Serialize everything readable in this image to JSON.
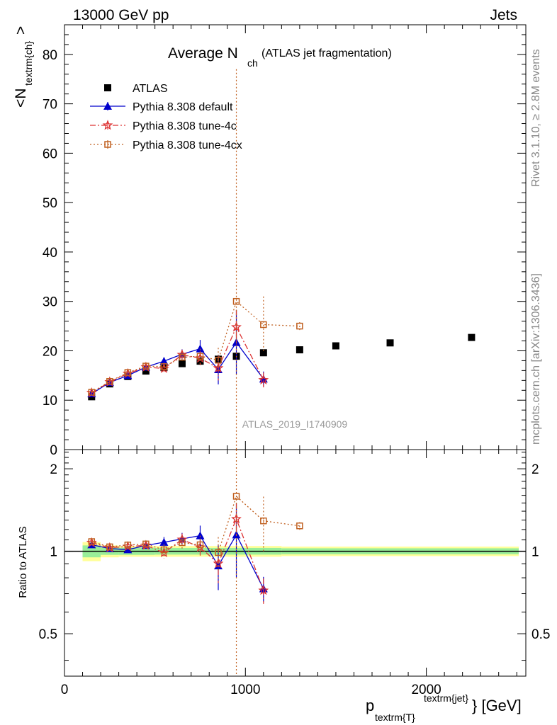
{
  "header": {
    "left": "13000 GeV pp",
    "right": "Jets"
  },
  "side_text": {
    "rivet": "Rivet 3.1.10, ≥ 2.8M events",
    "mcplots": "mcplots.cern.ch [arXiv:1306.3436]"
  },
  "chart_data": {
    "type": "scatter",
    "title_main": "Average N",
    "title_sub": "ch",
    "title_note": "(ATLAS jet fragmentation)",
    "watermark": "ATLAS_2019_I1740909",
    "ylabel_main": "<N",
    "ylabel_sub": "textrm{ch}",
    "ylabel_end": ">",
    "ratio_ylabel": "Ratio to ATLAS",
    "xlabel_p": "p",
    "xlabel_sub": "textrm{T}",
    "xlabel_sup": "textrm{jet}",
    "xlabel_end": "} [GeV]",
    "xlim": [
      0,
      2550
    ],
    "ylim": [
      0,
      86
    ],
    "ratio_ylim": [
      0.35,
      2.35
    ],
    "ratio_log": true,
    "x_ticks": [
      0,
      1000,
      2000
    ],
    "y_ticks": [
      0,
      10,
      20,
      30,
      40,
      50,
      60,
      70,
      80
    ],
    "ratio_ticks": [
      0.5,
      1,
      2
    ],
    "legend_position": "top-left",
    "series": [
      {
        "name": "ATLAS",
        "color": "#000000",
        "marker": "square",
        "x": [
          150,
          250,
          350,
          450,
          550,
          650,
          750,
          850,
          950,
          1100,
          1300,
          1500,
          1800,
          2250
        ],
        "y": [
          10.7,
          13.3,
          14.8,
          15.9,
          16.6,
          17.4,
          17.9,
          18.3,
          18.9,
          19.6,
          20.2,
          21.0,
          21.6,
          22.7
        ],
        "err": [
          0.3,
          0.3,
          0.3,
          0.3,
          0.3,
          0.3,
          0.3,
          0.3,
          0.3,
          0.3,
          0.3,
          0.3,
          0.3,
          0.3
        ]
      },
      {
        "name": "Pythia 8.308 default",
        "color": "#0000cc",
        "marker": "triangle",
        "x": [
          150,
          250,
          350,
          450,
          550,
          650,
          750,
          850,
          950,
          1100
        ],
        "y": [
          11.3,
          13.6,
          15.0,
          16.7,
          17.9,
          19.3,
          20.4,
          16.2,
          21.7,
          14.3
        ],
        "err": [
          0.3,
          0.3,
          0.4,
          0.5,
          0.8,
          1.0,
          1.8,
          3.0,
          6.5,
          1.5
        ]
      },
      {
        "name": "Pythia 8.308 tune-4c",
        "color": "#dd3333",
        "marker": "star",
        "x": [
          150,
          250,
          350,
          450,
          550,
          650,
          750,
          850,
          950,
          1100
        ],
        "y": [
          11.5,
          13.7,
          15.4,
          16.7,
          16.4,
          19.2,
          18.5,
          16.5,
          24.8,
          14.1
        ],
        "err": [
          0.3,
          0.3,
          0.4,
          0.5,
          0.8,
          1.0,
          1.4,
          2.5,
          3.5,
          1.5
        ]
      },
      {
        "name": "Pythia 8.308 tune-4cx",
        "color": "#c06020",
        "marker": "open-square",
        "x": [
          150,
          250,
          350,
          450,
          550,
          650,
          750,
          850,
          950,
          1100,
          1300
        ],
        "y": [
          11.6,
          13.8,
          15.6,
          16.9,
          16.8,
          18.7,
          18.9,
          18.1,
          30.0,
          25.3,
          25.0
        ],
        "err": [
          0.3,
          0.3,
          0.4,
          0.5,
          0.8,
          1.0,
          1.5,
          2.5,
          47.0,
          5.7,
          0.8
        ]
      }
    ]
  }
}
